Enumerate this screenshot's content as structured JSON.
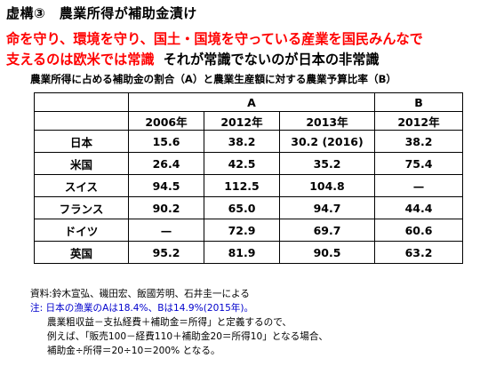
{
  "title": "虚構③　農業所得が補助金漬け",
  "headline": {
    "line1": "命を守り、環境を守り、国土・国境を守っている産業を国民みんなで",
    "line2": "支えるのは欧米では常識",
    "line2_tail": "それが常識でないのが日本の非常識"
  },
  "subtitle": "農業所得に占める補助金の割合（A）と農業生産額に対する農業予算比率（B）",
  "table": {
    "group_headers": {
      "a": "A",
      "b": "B"
    },
    "year_headers": [
      "2006年",
      "2012年",
      "2013年",
      "2012年"
    ],
    "rows": [
      {
        "country": "日本",
        "values": [
          "15.6",
          "38.2",
          "30.2 (2016)",
          "38.2"
        ]
      },
      {
        "country": "米国",
        "values": [
          "26.4",
          "42.5",
          "35.2",
          "75.4"
        ]
      },
      {
        "country": "スイス",
        "values": [
          "94.5",
          "112.5",
          "104.8",
          "—"
        ]
      },
      {
        "country": "フランス",
        "values": [
          "90.2",
          "65.0",
          "94.7",
          "44.4"
        ]
      },
      {
        "country": "ドイツ",
        "values": [
          "—",
          "72.9",
          "69.7",
          "60.6"
        ]
      },
      {
        "country": "英国",
        "values": [
          "95.2",
          "81.9",
          "90.5",
          "63.2"
        ]
      }
    ]
  },
  "notes": {
    "source": "資料:鈴木宣弘、磯田宏、飯國芳明、石井圭一による",
    "note_label": "注:",
    "note_red": "日本の漁業のAは18.4%、Bは14.9%(2015年)。",
    "line3": "農業粗収益－支払経費＋補助金＝所得」と定義するので、",
    "line4": "例えば、「販売100－経費110＋補助金20＝所得10」となる場合、",
    "line5": "補助金÷所得＝20÷10＝200% となる。"
  }
}
